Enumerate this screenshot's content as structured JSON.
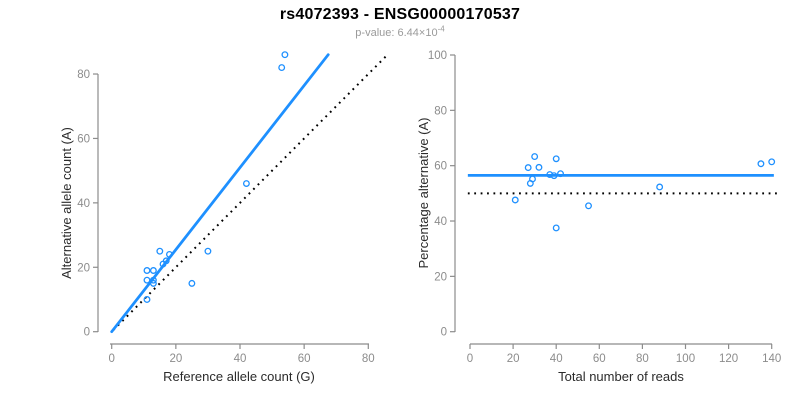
{
  "header": {
    "title": "rs4072393 - ENSG00000170537",
    "pvalue_label": "p-value: 6.44×10",
    "pvalue_exponent": "-4"
  },
  "colors": {
    "accent_blue": "#1E90FF",
    "axis_gray": "#8C8C8C",
    "tick_label_gray": "#8C8C8C",
    "axis_title_dark": "#2B2B2B",
    "subtitle_gray": "#9A9A9A",
    "dotted_black": "#000000"
  },
  "chart_data": [
    {
      "type": "scatter",
      "name": "allele-count-scatter",
      "xlabel": "Reference allele count (G)",
      "ylabel": "Alternative allele count (A)",
      "xticks": [
        0,
        20,
        40,
        60,
        80
      ],
      "yticks": [
        0,
        20,
        40,
        60,
        80
      ],
      "xlim": [
        0,
        87
      ],
      "ylim": [
        0,
        87
      ],
      "grid": false,
      "marker": "open-circle",
      "points": [
        [
          54,
          86
        ],
        [
          53,
          82
        ],
        [
          42,
          46
        ],
        [
          15,
          25
        ],
        [
          30,
          25
        ],
        [
          16,
          21
        ],
        [
          17,
          22
        ],
        [
          18,
          24
        ],
        [
          11,
          19
        ],
        [
          13,
          19
        ],
        [
          11,
          16
        ],
        [
          13,
          16
        ],
        [
          13,
          15
        ],
        [
          25,
          15
        ],
        [
          11,
          10
        ]
      ],
      "fit_line": {
        "x1": 0,
        "y1": 0,
        "x2": 67.5,
        "y2": 86
      },
      "identity_line": {
        "x1": 0.5,
        "y1": 0.5,
        "x2": 85.5,
        "y2": 85.5
      }
    },
    {
      "type": "scatter",
      "name": "percentage-vs-reads-scatter",
      "xlabel": "Total number of reads",
      "ylabel": "Percentage alternative (A)",
      "xticks": [
        0,
        20,
        40,
        60,
        80,
        100,
        120,
        140
      ],
      "yticks": [
        0,
        20,
        40,
        60,
        80,
        100
      ],
      "xlim": [
        0,
        143
      ],
      "ylim": [
        0,
        100
      ],
      "grid": false,
      "marker": "open-circle",
      "points": [
        [
          140,
          61.4
        ],
        [
          135,
          60.7
        ],
        [
          88,
          52.3
        ],
        [
          40,
          62.5
        ],
        [
          55,
          45.5
        ],
        [
          37,
          56.8
        ],
        [
          39,
          56.4
        ],
        [
          42,
          57.1
        ],
        [
          30,
          63.3
        ],
        [
          32,
          59.4
        ],
        [
          27,
          59.3
        ],
        [
          29,
          55.2
        ],
        [
          28,
          53.6
        ],
        [
          40,
          37.5
        ],
        [
          21,
          47.6
        ]
      ],
      "mean_line": {
        "y": 56.5,
        "x1": -1,
        "x2": 141
      },
      "null_line": {
        "y": 50,
        "x1": -1,
        "x2": 143
      }
    }
  ]
}
